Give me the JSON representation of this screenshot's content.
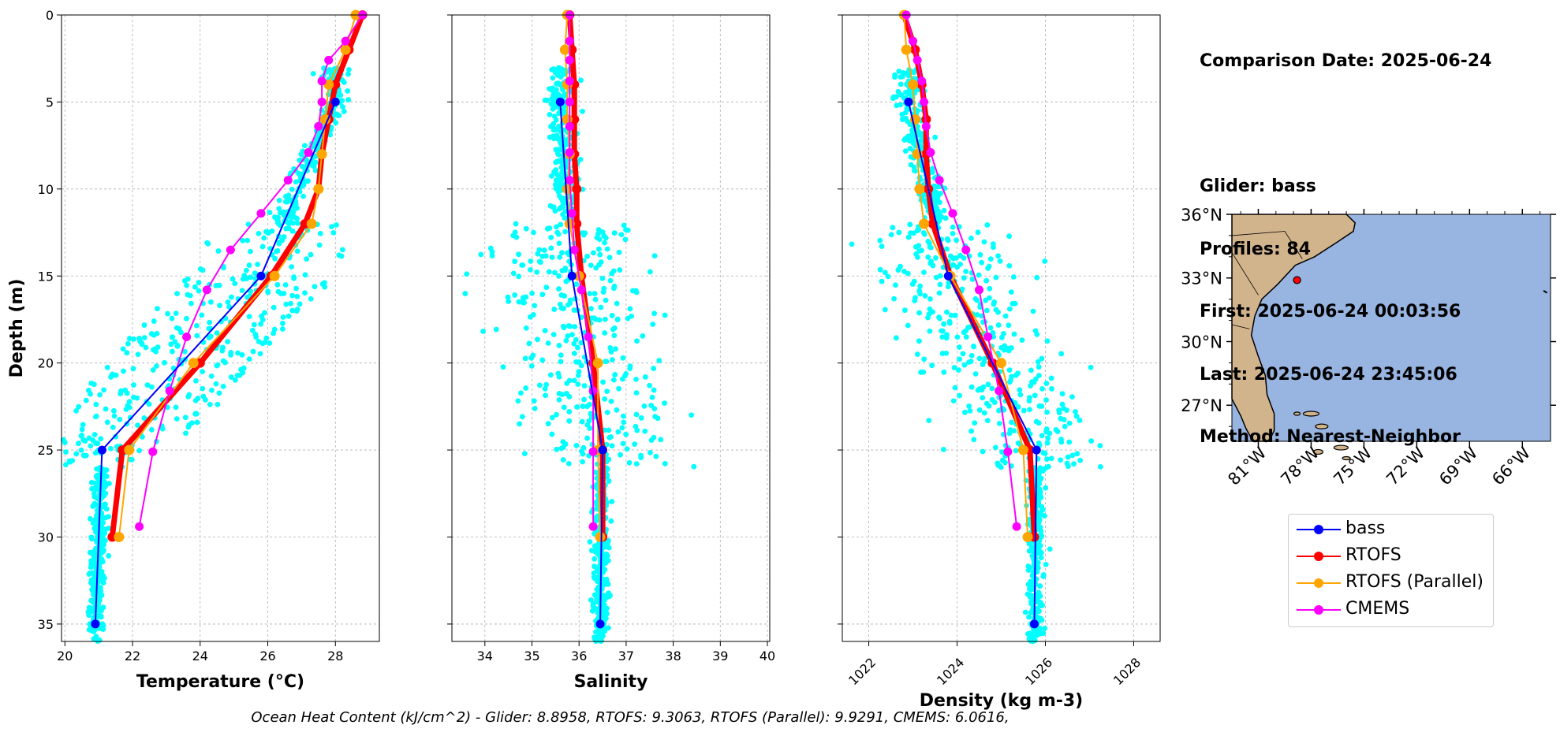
{
  "info": {
    "lines": [
      "Comparison Date: 2025-06-24",
      "",
      "Glider: bass",
      "Profiles: 84",
      "First: 2025-06-24 00:03:56",
      "Last: 2025-06-24 23:45:06",
      "Method: Nearest-Neighbor"
    ]
  },
  "caption": "Ocean Heat Content (kJ/cm^2) - Glider: 8.8958,  RTOFS: 9.3063,  RTOFS (Parallel): 9.9291,  CMEMS: 6.0616,",
  "colors": {
    "glider": "#0000ff",
    "rtofs": "#ff0000",
    "rtofs_parallel": "#ffa500",
    "cmems": "#ff00ff",
    "scatter": "#00ffff",
    "land": "#d2b48c",
    "ocean": "#98b4e0"
  },
  "legend": [
    {
      "name": "bass",
      "color": "#0000ff"
    },
    {
      "name": "RTOFS",
      "color": "#ff0000"
    },
    {
      "name": "RTOFS (Parallel)",
      "color": "#ffa500"
    },
    {
      "name": "CMEMS",
      "color": "#ff00ff"
    }
  ],
  "chart_data": [
    {
      "type": "line",
      "xlabel": "Temperature (°C)",
      "ylabel": "Depth (m)",
      "xlim": [
        19.9,
        29.3
      ],
      "ylim": [
        36,
        0
      ],
      "xticks": [
        20,
        22,
        24,
        26,
        28
      ],
      "yticks": [
        0,
        5,
        10,
        15,
        20,
        25,
        30,
        35
      ],
      "grid": true,
      "scatter_note": "cyan glider observations",
      "series": [
        {
          "name": "bass",
          "depth": [
            5,
            15,
            25,
            35
          ],
          "values": [
            28.0,
            25.8,
            21.1,
            20.9
          ]
        },
        {
          "name": "RTOFS",
          "depth": [
            0,
            2,
            4,
            6,
            8,
            10,
            12,
            15,
            20,
            25,
            30
          ],
          "values": [
            28.8,
            28.4,
            28.0,
            27.8,
            27.6,
            27.5,
            27.1,
            26.1,
            24.0,
            21.7,
            21.4
          ]
        },
        {
          "name": "RTOFS (Parallel)",
          "depth": [
            0,
            2,
            4,
            6,
            8,
            10,
            12,
            15,
            20,
            25,
            30
          ],
          "values": [
            28.6,
            28.3,
            27.8,
            27.7,
            27.6,
            27.5,
            27.3,
            26.2,
            23.8,
            21.9,
            21.6
          ]
        },
        {
          "name": "CMEMS",
          "depth": [
            0,
            1.5,
            2.6,
            3.8,
            5.0,
            6.4,
            7.9,
            9.5,
            11.4,
            13.5,
            15.8,
            18.5,
            21.6,
            25.1,
            29.4
          ],
          "values": [
            28.8,
            28.3,
            27.8,
            27.6,
            27.6,
            27.5,
            27.2,
            26.6,
            25.8,
            24.9,
            24.2,
            23.6,
            23.1,
            22.6,
            22.2
          ]
        }
      ]
    },
    {
      "type": "line",
      "xlabel": "Salinity",
      "xlim": [
        33.3,
        40.05
      ],
      "ylim": [
        36,
        0
      ],
      "xticks": [
        34,
        35,
        36,
        37,
        38,
        39,
        40
      ],
      "yticks": [
        0,
        5,
        10,
        15,
        20,
        25,
        30,
        35
      ],
      "grid": true,
      "series": [
        {
          "name": "bass",
          "depth": [
            5,
            15,
            25,
            35
          ],
          "values": [
            35.6,
            35.85,
            36.5,
            36.45
          ]
        },
        {
          "name": "RTOFS",
          "depth": [
            0,
            2,
            4,
            6,
            8,
            10,
            12,
            15,
            20,
            25,
            30
          ],
          "values": [
            35.8,
            35.85,
            35.9,
            35.9,
            35.9,
            35.95,
            35.95,
            36.05,
            36.3,
            36.5,
            36.5
          ]
        },
        {
          "name": "RTOFS (Parallel)",
          "depth": [
            0,
            2,
            4,
            6,
            8,
            10,
            12,
            15,
            20,
            25,
            30
          ],
          "values": [
            35.75,
            35.7,
            35.75,
            35.75,
            35.8,
            35.75,
            35.8,
            36.0,
            36.4,
            36.4,
            36.45
          ]
        },
        {
          "name": "CMEMS",
          "depth": [
            0,
            1.5,
            2.6,
            3.8,
            5.0,
            6.4,
            7.9,
            9.5,
            11.4,
            13.5,
            15.8,
            18.5,
            21.6,
            25.1,
            29.4
          ],
          "values": [
            35.8,
            35.8,
            35.8,
            35.8,
            35.8,
            35.8,
            35.8,
            35.8,
            35.85,
            35.9,
            36.05,
            36.2,
            36.3,
            36.3,
            36.3
          ]
        }
      ]
    },
    {
      "type": "line",
      "xlabel": "Density (kg m-3)",
      "xlim": [
        1021.4,
        1028.6
      ],
      "ylim": [
        36,
        0
      ],
      "xticks": [
        1022,
        1024,
        1026,
        1028
      ],
      "yticks": [
        0,
        5,
        10,
        15,
        20,
        25,
        30,
        35
      ],
      "grid": true,
      "series": [
        {
          "name": "bass",
          "depth": [
            5,
            15,
            25,
            35
          ],
          "values": [
            1022.9,
            1023.8,
            1025.8,
            1025.75
          ]
        },
        {
          "name": "RTOFS",
          "depth": [
            0,
            2,
            4,
            6,
            8,
            10,
            12,
            15,
            20,
            25,
            30
          ],
          "values": [
            1022.8,
            1023.05,
            1023.2,
            1023.3,
            1023.3,
            1023.35,
            1023.45,
            1023.85,
            1024.8,
            1025.65,
            1025.75
          ]
        },
        {
          "name": "RTOFS (Parallel)",
          "depth": [
            0,
            2,
            4,
            6,
            8,
            10,
            12,
            15,
            20,
            25,
            30
          ],
          "values": [
            1022.8,
            1022.85,
            1023.0,
            1023.05,
            1023.1,
            1023.15,
            1023.25,
            1023.85,
            1025.0,
            1025.5,
            1025.6
          ]
        },
        {
          "name": "CMEMS",
          "depth": [
            0,
            1.5,
            2.6,
            3.8,
            5.0,
            6.4,
            7.9,
            9.5,
            11.4,
            13.5,
            15.8,
            18.5,
            21.6,
            25.1,
            29.4
          ],
          "values": [
            1022.85,
            1023.0,
            1023.1,
            1023.2,
            1023.25,
            1023.3,
            1023.4,
            1023.6,
            1023.9,
            1024.2,
            1024.5,
            1024.7,
            1024.95,
            1025.15,
            1025.35
          ]
        }
      ]
    }
  ],
  "map": {
    "lat_ticks": [
      "36°N",
      "33°N",
      "30°N",
      "27°N"
    ],
    "lon_ticks": [
      "81°W",
      "78°W",
      "75°W",
      "72°W",
      "69°W",
      "66°W"
    ],
    "glider_lat": 32.9,
    "glider_lon": -78.8
  }
}
